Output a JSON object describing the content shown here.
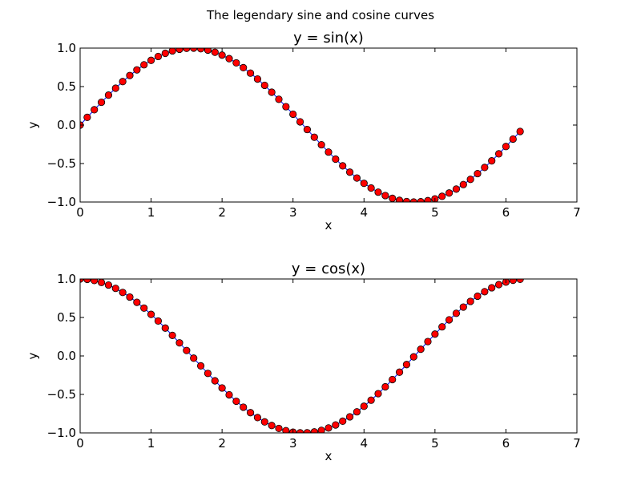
{
  "figure": {
    "suptitle": "The legendary sine and cosine curves"
  },
  "chart_data": [
    {
      "type": "line",
      "title": "y = sin(x)",
      "xlabel": "x",
      "ylabel": "y",
      "xlim": [
        0,
        7
      ],
      "ylim": [
        -1.0,
        1.0
      ],
      "xticks": [
        0,
        1,
        2,
        3,
        4,
        5,
        6,
        7
      ],
      "xtick_labels": [
        "0",
        "1",
        "2",
        "3",
        "4",
        "5",
        "6",
        "7"
      ],
      "yticks": [
        -1.0,
        -0.5,
        0.0,
        0.5,
        1.0
      ],
      "ytick_labels": [
        "−1.0",
        "−0.5",
        "0.0",
        "0.5",
        "1.0"
      ],
      "grid": false,
      "line_color": "#0000ff",
      "marker_color": "#ff0000",
      "x": [
        0.0,
        0.1,
        0.2,
        0.3,
        0.4,
        0.5,
        0.6,
        0.7,
        0.8,
        0.9,
        1.0,
        1.1,
        1.2,
        1.3,
        1.4,
        1.5,
        1.6,
        1.7,
        1.8,
        1.9,
        2.0,
        2.1,
        2.2,
        2.3,
        2.4,
        2.5,
        2.6,
        2.7,
        2.8,
        2.9,
        3.0,
        3.1,
        3.2,
        3.3,
        3.4,
        3.5,
        3.6,
        3.7,
        3.8,
        3.9,
        4.0,
        4.1,
        4.2,
        4.3,
        4.4,
        4.5,
        4.6,
        4.7,
        4.8,
        4.9,
        5.0,
        5.1,
        5.2,
        5.3,
        5.4,
        5.5,
        5.6,
        5.7,
        5.8,
        5.9,
        6.0,
        6.1,
        6.2
      ],
      "series": [
        {
          "values": [
            0.0,
            0.1,
            0.199,
            0.296,
            0.389,
            0.479,
            0.565,
            0.644,
            0.717,
            0.783,
            0.841,
            0.891,
            0.932,
            0.964,
            0.985,
            0.997,
            1.0,
            0.992,
            0.974,
            0.946,
            0.909,
            0.863,
            0.808,
            0.746,
            0.675,
            0.598,
            0.516,
            0.427,
            0.335,
            0.239,
            0.141,
            0.042,
            -0.058,
            -0.158,
            -0.256,
            -0.351,
            -0.443,
            -0.53,
            -0.612,
            -0.688,
            -0.757,
            -0.818,
            -0.872,
            -0.916,
            -0.952,
            -0.978,
            -0.994,
            -1.0,
            -0.996,
            -0.982,
            -0.959,
            -0.926,
            -0.883,
            -0.832,
            -0.773,
            -0.706,
            -0.631,
            -0.551,
            -0.465,
            -0.374,
            -0.279,
            -0.182,
            -0.083
          ]
        }
      ]
    },
    {
      "type": "line",
      "title": "y = cos(x)",
      "xlabel": "x",
      "ylabel": "y",
      "xlim": [
        0,
        7
      ],
      "ylim": [
        -1.0,
        1.0
      ],
      "xticks": [
        0,
        1,
        2,
        3,
        4,
        5,
        6,
        7
      ],
      "xtick_labels": [
        "0",
        "1",
        "2",
        "3",
        "4",
        "5",
        "6",
        "7"
      ],
      "yticks": [
        -1.0,
        -0.5,
        0.0,
        0.5,
        1.0
      ],
      "ytick_labels": [
        "−1.0",
        "−0.5",
        "0.0",
        "0.5",
        "1.0"
      ],
      "grid": false,
      "line_color": "#0000ff",
      "marker_color": "#ff0000",
      "x": [
        0.0,
        0.1,
        0.2,
        0.3,
        0.4,
        0.5,
        0.6,
        0.7,
        0.8,
        0.9,
        1.0,
        1.1,
        1.2,
        1.3,
        1.4,
        1.5,
        1.6,
        1.7,
        1.8,
        1.9,
        2.0,
        2.1,
        2.2,
        2.3,
        2.4,
        2.5,
        2.6,
        2.7,
        2.8,
        2.9,
        3.0,
        3.1,
        3.2,
        3.3,
        3.4,
        3.5,
        3.6,
        3.7,
        3.8,
        3.9,
        4.0,
        4.1,
        4.2,
        4.3,
        4.4,
        4.5,
        4.6,
        4.7,
        4.8,
        4.9,
        5.0,
        5.1,
        5.2,
        5.3,
        5.4,
        5.5,
        5.6,
        5.7,
        5.8,
        5.9,
        6.0,
        6.1,
        6.2
      ],
      "series": [
        {
          "values": [
            1.0,
            0.995,
            0.98,
            0.955,
            0.921,
            0.878,
            0.825,
            0.765,
            0.697,
            0.622,
            0.54,
            0.454,
            0.362,
            0.267,
            0.17,
            0.071,
            -0.029,
            -0.129,
            -0.227,
            -0.323,
            -0.416,
            -0.505,
            -0.589,
            -0.666,
            -0.737,
            -0.801,
            -0.857,
            -0.904,
            -0.942,
            -0.971,
            -0.99,
            -0.999,
            -0.998,
            -0.987,
            -0.967,
            -0.936,
            -0.897,
            -0.848,
            -0.791,
            -0.726,
            -0.654,
            -0.575,
            -0.49,
            -0.401,
            -0.307,
            -0.211,
            -0.112,
            -0.012,
            0.087,
            0.187,
            0.284,
            0.378,
            0.469,
            0.554,
            0.635,
            0.709,
            0.776,
            0.835,
            0.886,
            0.927,
            0.96,
            0.983,
            0.996
          ]
        }
      ]
    }
  ]
}
